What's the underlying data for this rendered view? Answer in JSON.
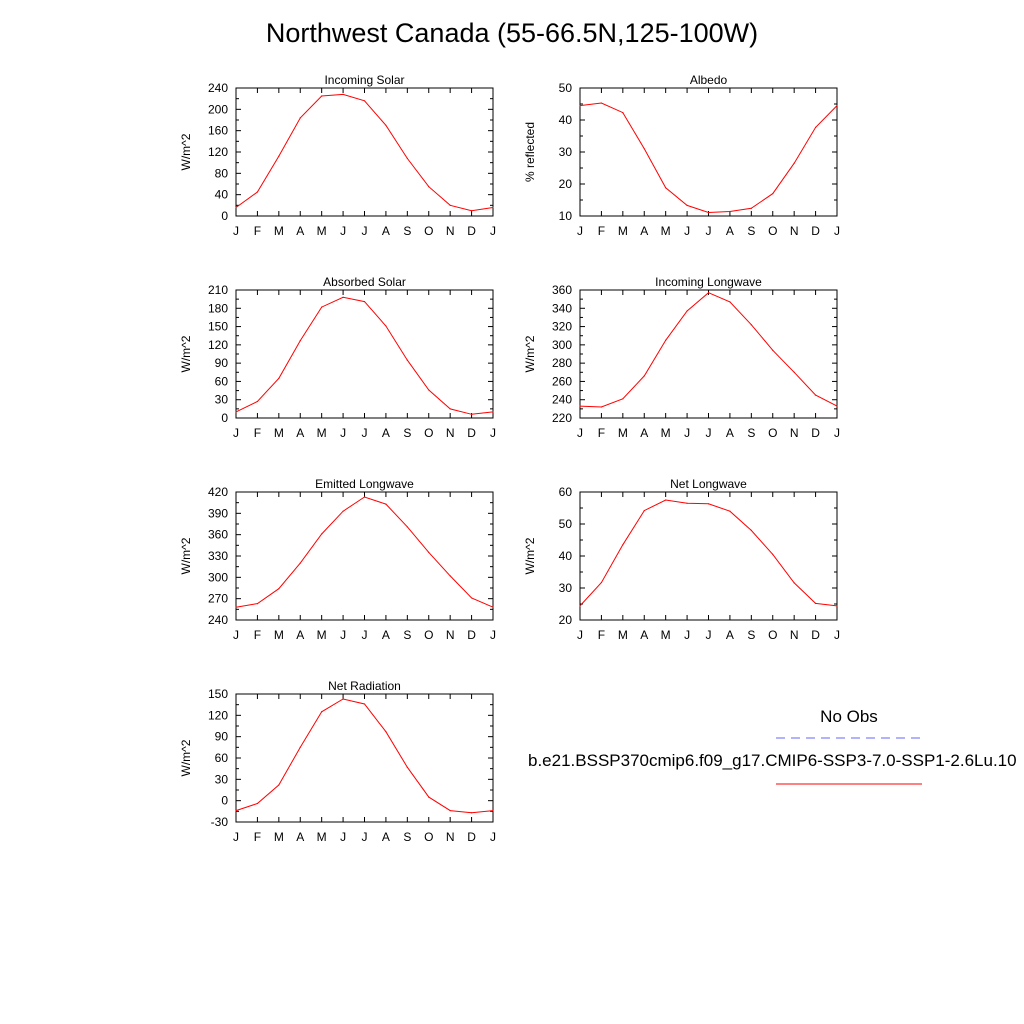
{
  "page_title": "Northwest Canada (55-66.5N,125-100W)",
  "months": [
    "J",
    "F",
    "M",
    "A",
    "M",
    "J",
    "J",
    "A",
    "S",
    "O",
    "N",
    "D",
    "J"
  ],
  "colors": {
    "model": "#ff0000",
    "obs": "#6666ff",
    "axis": "#000000"
  },
  "legend": {
    "obs_label": "No Obs",
    "model_label": "b.e21.BSSP370cmip6.f09_g17.CMIP6-SSP3-7.0-SSP1-2.6Lu.10"
  },
  "chart_data": [
    {
      "id": "incoming-solar",
      "type": "line",
      "title": "Incoming Solar",
      "ylabel": "W/m^2",
      "ylim": [
        0,
        240
      ],
      "yticks": [
        0,
        40,
        80,
        120,
        160,
        200,
        240
      ],
      "series": [
        {
          "values": [
            16,
            45,
            112,
            184,
            225,
            228,
            216,
            170,
            108,
            55,
            20,
            10,
            16
          ]
        }
      ]
    },
    {
      "id": "albedo",
      "type": "line",
      "title": "Albedo",
      "ylabel": "% reflected",
      "ylim": [
        10,
        50
      ],
      "yticks": [
        10,
        20,
        30,
        40,
        50
      ],
      "series": [
        {
          "values": [
            44.5,
            45.3,
            42.3,
            31,
            18.8,
            13.3,
            11.1,
            11.4,
            12.4,
            17,
            26.5,
            37.7,
            44.5
          ]
        }
      ]
    },
    {
      "id": "absorbed-solar",
      "type": "line",
      "title": "Absorbed Solar",
      "ylabel": "W/m^2",
      "ylim": [
        0,
        210
      ],
      "yticks": [
        0,
        30,
        60,
        90,
        120,
        150,
        180,
        210
      ],
      "series": [
        {
          "values": [
            10,
            27,
            65,
            127,
            182,
            198,
            191,
            151,
            95,
            46,
            15,
            6,
            10
          ]
        }
      ]
    },
    {
      "id": "incoming-longwave",
      "type": "line",
      "title": "Incoming Longwave",
      "ylabel": "W/m^2",
      "ylim": [
        220,
        360
      ],
      "yticks": [
        220,
        240,
        260,
        280,
        300,
        320,
        340,
        360
      ],
      "series": [
        {
          "values": [
            233,
            232,
            241,
            266,
            305,
            337,
            357,
            347,
            322,
            294,
            270,
            245,
            233
          ]
        }
      ]
    },
    {
      "id": "emitted-longwave",
      "type": "line",
      "title": "Emitted Longwave",
      "ylabel": "W/m^2",
      "ylim": [
        240,
        420
      ],
      "yticks": [
        240,
        270,
        300,
        330,
        360,
        390,
        420
      ],
      "series": [
        {
          "values": [
            258,
            263,
            284,
            320,
            361,
            393,
            413,
            403,
            371,
            335,
            302,
            271,
            258
          ]
        }
      ]
    },
    {
      "id": "net-longwave",
      "type": "line",
      "title": "Net Longwave",
      "ylabel": "W/m^2",
      "ylim": [
        20,
        60
      ],
      "yticks": [
        20,
        30,
        40,
        50,
        60
      ],
      "series": [
        {
          "values": [
            24.4,
            31.7,
            43.5,
            54.2,
            57.5,
            56.5,
            56.3,
            54,
            48,
            40.5,
            31.6,
            25.2,
            24.4
          ]
        }
      ]
    },
    {
      "id": "net-radiation",
      "type": "line",
      "title": "Net Radiation",
      "ylabel": "W/m^2",
      "ylim": [
        -30,
        150
      ],
      "yticks": [
        -30,
        0,
        30,
        60,
        90,
        120,
        150
      ],
      "series": [
        {
          "values": [
            -14,
            -4,
            22,
            75,
            125,
            143,
            136,
            97,
            47,
            5,
            -14,
            -17,
            -14
          ]
        }
      ]
    }
  ]
}
